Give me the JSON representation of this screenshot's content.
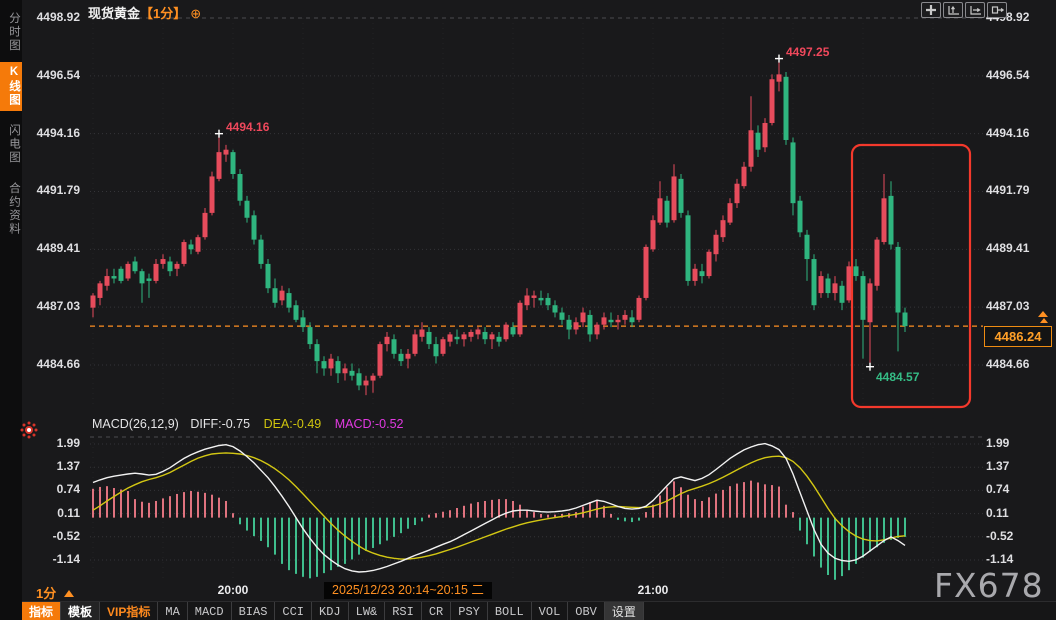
{
  "header": {
    "symbol": "现货黄金",
    "interval_tag": "【1分】",
    "add_icon": "⊕"
  },
  "sidebar": {
    "tabs": [
      {
        "label": "分时图",
        "active": false
      },
      {
        "label": "K线图",
        "active": true
      },
      {
        "label": "闪电图",
        "active": false
      },
      {
        "label": "合约资料",
        "active": false
      }
    ]
  },
  "interval_label": "1分",
  "status_bar": {
    "datetime": "2025/12/23 20:14~20:15 二"
  },
  "watermark": "FX678",
  "price_axis": [
    "4498.92",
    "4496.54",
    "4494.16",
    "4491.79",
    "4489.41",
    "4487.03",
    "4484.66"
  ],
  "macd_axis": [
    "1.99",
    "1.37",
    "0.74",
    "0.11",
    "-0.52",
    "-1.14"
  ],
  "time_axis": [
    {
      "label": "20:00",
      "index": 20
    },
    {
      "label": "21:00",
      "index": 80
    }
  ],
  "macd_header": {
    "name": "MACD(26,12,9)",
    "diff_label": "DIFF:-0.75",
    "dea_label": "DEA:-0.49",
    "macd_label": "MACD:-0.52"
  },
  "annotations": {
    "high1": {
      "text": "4494.16",
      "index": 18,
      "price": 4494.16
    },
    "high2": {
      "text": "4497.25",
      "index": 98,
      "price": 4497.25
    },
    "low1": {
      "text": "4484.57",
      "index": 111,
      "price": 4484.57
    },
    "last_price": "4486.24"
  },
  "toolbar": {
    "items": [
      {
        "label": "指标",
        "style": "active",
        "cn": true
      },
      {
        "label": "模板",
        "style": "bold",
        "cn": true
      },
      {
        "label": "VIP指标",
        "style": "vip",
        "cn": true
      },
      {
        "label": "MA"
      },
      {
        "label": "MACD"
      },
      {
        "label": "BIAS"
      },
      {
        "label": "CCI"
      },
      {
        "label": "KDJ"
      },
      {
        "label": "LW&"
      },
      {
        "label": "RSI"
      },
      {
        "label": "CR"
      },
      {
        "label": "PSY"
      },
      {
        "label": "BOLL"
      },
      {
        "label": "VOL"
      },
      {
        "label": "OBV"
      },
      {
        "label": "设置",
        "style": "settings",
        "cn": true
      }
    ]
  },
  "colors": {
    "up": "#e64c5c",
    "down": "#2fb57f",
    "hist_up": "#e0737f",
    "hist_down": "#3fbe8d",
    "diff_line": "#f2f2f2",
    "dea_line": "#d3c713",
    "accent_orange": "#ff9022",
    "highlight_box": "#f4392c",
    "grid": "#343438",
    "grid_bright": "#4b4b4f"
  },
  "chart_data": {
    "type": "candlestick+macd",
    "symbol": "现货黄金",
    "interval": "1分",
    "last_price": 4486.24,
    "price_ticks": [
      4498.92,
      4496.54,
      4494.16,
      4491.79,
      4489.41,
      4487.03,
      4484.66
    ],
    "macd_ticks": [
      1.99,
      1.37,
      0.74,
      0.11,
      -0.52,
      -1.14
    ],
    "candles": [
      [
        4487.0,
        4487.6,
        4486.6,
        4487.5
      ],
      [
        4487.4,
        4488.1,
        4487.1,
        4488.0
      ],
      [
        4487.9,
        4488.6,
        4487.7,
        4488.3
      ],
      [
        4488.3,
        4488.6,
        4488.0,
        4488.2
      ],
      [
        4488.6,
        4488.7,
        4488.0,
        4488.1
      ],
      [
        4488.2,
        4488.9,
        4488.1,
        4488.8
      ],
      [
        4488.9,
        4489.1,
        4488.4,
        4488.5
      ],
      [
        4488.5,
        4488.6,
        4487.2,
        4488.0
      ],
      [
        4488.2,
        4488.4,
        4487.4,
        4488.1
      ],
      [
        4488.1,
        4489.0,
        4488.0,
        4488.8
      ],
      [
        4488.8,
        4489.2,
        4488.6,
        4489.0
      ],
      [
        4488.9,
        4489.1,
        4488.3,
        4488.5
      ],
      [
        4488.6,
        4488.9,
        4488.3,
        4488.8
      ],
      [
        4488.8,
        4489.8,
        4488.7,
        4489.7
      ],
      [
        4489.6,
        4489.8,
        4489.2,
        4489.4
      ],
      [
        4489.3,
        4490.0,
        4489.2,
        4489.9
      ],
      [
        4489.9,
        4491.1,
        4489.8,
        4490.9
      ],
      [
        4490.9,
        4492.6,
        4490.8,
        4492.4
      ],
      [
        4492.3,
        4494.16,
        4492.2,
        4493.4
      ],
      [
        4493.3,
        4493.7,
        4493.0,
        4493.5
      ],
      [
        4493.4,
        4493.5,
        4492.3,
        4492.5
      ],
      [
        4492.5,
        4492.7,
        4491.2,
        4491.4
      ],
      [
        4491.4,
        4491.6,
        4490.5,
        4490.7
      ],
      [
        4490.8,
        4491.0,
        4489.6,
        4489.8
      ],
      [
        4489.8,
        4490.0,
        4488.6,
        4488.8
      ],
      [
        4488.8,
        4489.0,
        4487.6,
        4487.8
      ],
      [
        4487.8,
        4488.2,
        4487.0,
        4487.2
      ],
      [
        4487.3,
        4487.9,
        4487.1,
        4487.7
      ],
      [
        4487.6,
        4487.8,
        4486.8,
        4487.0
      ],
      [
        4487.1,
        4487.3,
        4486.4,
        4486.5
      ],
      [
        4486.6,
        4486.9,
        4486.0,
        4486.2
      ],
      [
        4486.2,
        4486.4,
        4485.3,
        4485.5
      ],
      [
        4485.5,
        4485.7,
        4484.3,
        4484.8
      ],
      [
        4484.8,
        4485.0,
        4484.2,
        4484.5
      ],
      [
        4484.5,
        4485.1,
        4484.2,
        4484.9
      ],
      [
        4484.8,
        4485.0,
        4483.9,
        4484.3
      ],
      [
        4484.3,
        4484.7,
        4484.0,
        4484.5
      ],
      [
        4484.4,
        4484.7,
        4484.0,
        4484.2
      ],
      [
        4484.3,
        4484.5,
        4483.6,
        4483.8
      ],
      [
        4483.8,
        4484.2,
        4483.4,
        4484.0
      ],
      [
        4484.0,
        4484.3,
        4483.5,
        4484.2
      ],
      [
        4484.2,
        4485.6,
        4484.1,
        4485.5
      ],
      [
        4485.5,
        4486.0,
        4485.2,
        4485.8
      ],
      [
        4485.7,
        4485.9,
        4484.9,
        4485.1
      ],
      [
        4485.1,
        4485.3,
        4484.6,
        4484.8
      ],
      [
        4484.9,
        4485.3,
        4484.5,
        4485.1
      ],
      [
        4485.1,
        4486.1,
        4485.0,
        4485.9
      ],
      [
        4485.8,
        4486.4,
        4485.6,
        4486.1
      ],
      [
        4486.0,
        4486.2,
        4485.3,
        4485.5
      ],
      [
        4485.5,
        4485.8,
        4484.7,
        4485.0
      ],
      [
        4485.1,
        4485.8,
        4485.0,
        4485.7
      ],
      [
        4485.6,
        4486.0,
        4485.4,
        4485.9
      ],
      [
        4485.8,
        4486.1,
        4485.5,
        4485.7
      ],
      [
        4485.7,
        4486.0,
        4485.4,
        4485.9
      ],
      [
        4485.8,
        4486.1,
        4485.6,
        4486.0
      ],
      [
        4485.9,
        4486.2,
        4485.7,
        4486.1
      ],
      [
        4486.0,
        4486.2,
        4485.5,
        4485.7
      ],
      [
        4485.7,
        4486.0,
        4485.3,
        4485.9
      ],
      [
        4485.8,
        4486.0,
        4485.4,
        4485.6
      ],
      [
        4485.7,
        4486.4,
        4485.6,
        4486.3
      ],
      [
        4486.2,
        4486.4,
        4485.8,
        4485.9
      ],
      [
        4485.9,
        4487.3,
        4485.8,
        4487.2
      ],
      [
        4487.1,
        4487.8,
        4486.9,
        4487.5
      ],
      [
        4487.4,
        4487.7,
        4487.0,
        4487.5
      ],
      [
        4487.4,
        4487.7,
        4487.1,
        4487.3
      ],
      [
        4487.4,
        4487.6,
        4486.9,
        4487.1
      ],
      [
        4487.1,
        4487.3,
        4486.6,
        4486.8
      ],
      [
        4486.8,
        4487.0,
        4486.3,
        4486.5
      ],
      [
        4486.5,
        4486.7,
        4485.7,
        4486.1
      ],
      [
        4486.1,
        4486.6,
        4485.9,
        4486.4
      ],
      [
        4486.4,
        4487.0,
        4486.2,
        4486.8
      ],
      [
        4486.7,
        4486.9,
        4485.6,
        4485.9
      ],
      [
        4485.9,
        4486.4,
        4485.7,
        4486.3
      ],
      [
        4486.3,
        4486.8,
        4486.1,
        4486.6
      ],
      [
        4486.5,
        4486.8,
        4486.2,
        4486.4
      ],
      [
        4486.4,
        4486.7,
        4486.1,
        4486.5
      ],
      [
        4486.5,
        4486.9,
        4486.3,
        4486.7
      ],
      [
        4486.6,
        4486.9,
        4486.2,
        4486.4
      ],
      [
        4486.5,
        4487.5,
        4486.4,
        4487.4
      ],
      [
        4487.4,
        4489.6,
        4487.3,
        4489.5
      ],
      [
        4489.4,
        4490.8,
        4489.3,
        4490.6
      ],
      [
        4490.5,
        4492.2,
        4490.4,
        4491.5
      ],
      [
        4491.4,
        4491.6,
        4490.3,
        4490.5
      ],
      [
        4490.6,
        4492.9,
        4490.5,
        4492.4
      ],
      [
        4492.3,
        4492.5,
        4490.7,
        4490.9
      ],
      [
        4490.8,
        4491.0,
        4487.9,
        4488.1
      ],
      [
        4488.1,
        4488.8,
        4487.9,
        4488.6
      ],
      [
        4488.5,
        4488.8,
        4488.0,
        4488.3
      ],
      [
        4488.3,
        4489.4,
        4488.2,
        4489.3
      ],
      [
        4489.2,
        4490.2,
        4488.9,
        4490.0
      ],
      [
        4489.9,
        4490.8,
        4489.7,
        4490.6
      ],
      [
        4490.5,
        4491.5,
        4490.4,
        4491.3
      ],
      [
        4491.3,
        4492.3,
        4491.1,
        4492.1
      ],
      [
        4492.0,
        4493.0,
        4491.9,
        4492.8
      ],
      [
        4492.8,
        4495.7,
        4492.6,
        4494.3
      ],
      [
        4494.2,
        4494.5,
        4493.2,
        4493.5
      ],
      [
        4493.6,
        4494.8,
        4493.4,
        4494.6
      ],
      [
        4494.6,
        4496.6,
        4494.5,
        4496.4
      ],
      [
        4496.3,
        4497.25,
        4495.9,
        4496.6
      ],
      [
        4496.5,
        4496.7,
        4493.7,
        4493.9
      ],
      [
        4493.8,
        4494.0,
        4490.8,
        4491.3
      ],
      [
        4491.4,
        4491.6,
        4489.9,
        4490.1
      ],
      [
        4490.0,
        4490.2,
        4488.1,
        4489.0
      ],
      [
        4489.0,
        4489.2,
        4486.9,
        4487.1
      ],
      [
        4487.6,
        4488.5,
        4487.4,
        4488.3
      ],
      [
        4488.2,
        4488.4,
        4487.4,
        4487.6
      ],
      [
        4487.6,
        4488.3,
        4487.3,
        4488.0
      ],
      [
        4487.9,
        4488.1,
        4486.9,
        4487.2
      ],
      [
        4487.3,
        4488.9,
        4487.2,
        4488.7
      ],
      [
        4488.7,
        4489.0,
        4488.1,
        4488.3
      ],
      [
        4488.3,
        4488.5,
        4484.9,
        4486.5
      ],
      [
        4486.4,
        4488.2,
        4484.57,
        4488.0
      ],
      [
        4487.9,
        4489.9,
        4487.7,
        4489.8
      ],
      [
        4489.7,
        4492.5,
        4489.6,
        4491.5
      ],
      [
        4491.6,
        4492.2,
        4489.4,
        4489.6
      ],
      [
        4489.5,
        4489.7,
        4485.2,
        4486.8
      ],
      [
        4486.8,
        4487.0,
        4486.0,
        4486.24
      ]
    ],
    "macd": {
      "diff": [
        0.95,
        1.02,
        1.08,
        1.12,
        1.15,
        1.18,
        1.2,
        1.18,
        1.15,
        1.17,
        1.25,
        1.35,
        1.48,
        1.6,
        1.7,
        1.78,
        1.85,
        1.9,
        1.95,
        1.97,
        1.92,
        1.8,
        1.65,
        1.48,
        1.28,
        1.08,
        0.84,
        0.58,
        0.3,
        0.0,
        -0.3,
        -0.56,
        -0.8,
        -1.0,
        -1.15,
        -1.28,
        -1.38,
        -1.44,
        -1.47,
        -1.46,
        -1.43,
        -1.38,
        -1.32,
        -1.25,
        -1.18,
        -1.1,
        -1.02,
        -0.95,
        -0.88,
        -0.8,
        -0.72,
        -0.65,
        -0.56,
        -0.46,
        -0.36,
        -0.26,
        -0.16,
        -0.06,
        0.04,
        0.12,
        0.18,
        0.2,
        0.2,
        0.18,
        0.16,
        0.15,
        0.16,
        0.18,
        0.21,
        0.26,
        0.33,
        0.4,
        0.47,
        0.44,
        0.37,
        0.3,
        0.25,
        0.23,
        0.25,
        0.31,
        0.46,
        0.66,
        0.86,
        1.05,
        1.1,
        1.05,
        1.0,
        1.06,
        1.16,
        1.3,
        1.45,
        1.6,
        1.72,
        1.83,
        1.91,
        1.97,
        2.0,
        1.94,
        1.84,
        1.6,
        1.18,
        0.68,
        0.18,
        -0.32,
        -0.72,
        -0.96,
        -1.1,
        -1.16,
        -1.18,
        -1.14,
        -1.04,
        -0.9,
        -0.76,
        -0.62,
        -0.52,
        -0.62,
        -0.75
      ],
      "dea": [
        0.2,
        0.32,
        0.45,
        0.57,
        0.69,
        0.8,
        0.89,
        0.97,
        1.03,
        1.08,
        1.14,
        1.22,
        1.32,
        1.42,
        1.52,
        1.61,
        1.67,
        1.72,
        1.74,
        1.75,
        1.74,
        1.72,
        1.68,
        1.62,
        1.54,
        1.44,
        1.32,
        1.18,
        1.02,
        0.84,
        0.64,
        0.44,
        0.24,
        0.04,
        -0.16,
        -0.34,
        -0.5,
        -0.64,
        -0.77,
        -0.88,
        -0.96,
        -1.02,
        -1.07,
        -1.1,
        -1.12,
        -1.12,
        -1.1,
        -1.07,
        -1.03,
        -0.98,
        -0.92,
        -0.86,
        -0.8,
        -0.73,
        -0.66,
        -0.59,
        -0.52,
        -0.45,
        -0.38,
        -0.31,
        -0.25,
        -0.19,
        -0.14,
        -0.1,
        -0.06,
        -0.03,
        0.0,
        0.03,
        0.06,
        0.09,
        0.13,
        0.18,
        0.23,
        0.27,
        0.29,
        0.3,
        0.29,
        0.28,
        0.27,
        0.28,
        0.31,
        0.37,
        0.45,
        0.55,
        0.65,
        0.73,
        0.79,
        0.85,
        0.92,
        1.0,
        1.09,
        1.19,
        1.29,
        1.39,
        1.48,
        1.56,
        1.62,
        1.65,
        1.66,
        1.62,
        1.52,
        1.35,
        1.12,
        0.85,
        0.55,
        0.25,
        -0.02,
        -0.22,
        -0.38,
        -0.5,
        -0.58,
        -0.62,
        -0.63,
        -0.6,
        -0.55,
        -0.51,
        -0.49
      ],
      "hist": [
        0.78,
        0.83,
        0.85,
        0.8,
        0.76,
        0.72,
        0.5,
        0.43,
        0.4,
        0.45,
        0.52,
        0.58,
        0.64,
        0.69,
        0.72,
        0.7,
        0.67,
        0.62,
        0.54,
        0.45,
        0.12,
        -0.18,
        -0.35,
        -0.5,
        -0.63,
        -0.8,
        -1.0,
        -1.25,
        -1.42,
        -1.52,
        -1.6,
        -1.64,
        -1.6,
        -1.5,
        -1.42,
        -1.33,
        -1.25,
        -1.13,
        -1.0,
        -0.9,
        -0.82,
        -0.72,
        -0.62,
        -0.52,
        -0.42,
        -0.3,
        -0.2,
        -0.1,
        0.08,
        0.12,
        0.16,
        0.2,
        0.26,
        0.32,
        0.38,
        0.42,
        0.45,
        0.48,
        0.5,
        0.5,
        0.45,
        0.35,
        0.22,
        0.15,
        0.1,
        0.08,
        0.08,
        0.1,
        0.12,
        0.15,
        0.3,
        0.42,
        0.46,
        0.32,
        0.1,
        -0.06,
        -0.1,
        -0.12,
        -0.08,
        0.15,
        0.35,
        0.6,
        0.82,
        0.98,
        0.82,
        0.62,
        0.5,
        0.45,
        0.55,
        0.65,
        0.75,
        0.85,
        0.92,
        0.96,
        1.0,
        0.95,
        0.9,
        0.88,
        0.84,
        0.35,
        0.15,
        -0.35,
        -0.72,
        -1.05,
        -1.35,
        -1.55,
        -1.68,
        -1.58,
        -1.42,
        -1.25,
        -1.08,
        -0.92,
        -0.8,
        -0.68,
        -0.6,
        -0.55,
        -0.52
      ]
    }
  }
}
